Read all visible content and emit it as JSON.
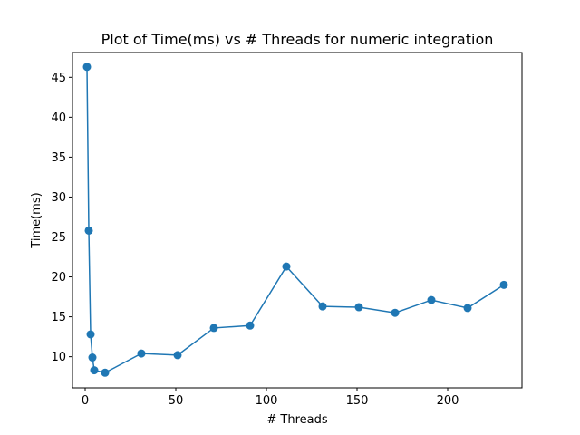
{
  "chart_data": {
    "type": "line",
    "title": "Plot of Time(ms) vs # Threads for numeric integration",
    "xlabel": "# Threads",
    "ylabel": "Time(ms)",
    "xlim": [
      -7,
      241
    ],
    "ylim": [
      6.1,
      48.1
    ],
    "xticks": [
      0,
      50,
      100,
      150,
      200
    ],
    "yticks": [
      10,
      15,
      20,
      25,
      30,
      35,
      40,
      45
    ],
    "grid": false,
    "series": [
      {
        "color": "#1f77b4",
        "marker": "circle",
        "points": [
          [
            1,
            46.3
          ],
          [
            2,
            25.8
          ],
          [
            3,
            12.8
          ],
          [
            4,
            9.9
          ],
          [
            5,
            8.3
          ],
          [
            11,
            8.0
          ],
          [
            31,
            10.4
          ],
          [
            51,
            10.2
          ],
          [
            71,
            13.6
          ],
          [
            91,
            13.9
          ],
          [
            111,
            21.3
          ],
          [
            131,
            16.3
          ],
          [
            151,
            16.2
          ],
          [
            171,
            15.5
          ],
          [
            191,
            17.1
          ],
          [
            211,
            16.1
          ],
          [
            231,
            19.0
          ]
        ]
      }
    ]
  }
}
